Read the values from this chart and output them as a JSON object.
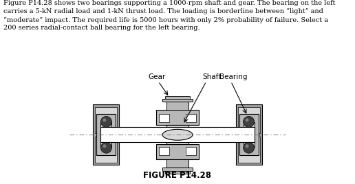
{
  "text_block": "Figure P14.28 shows two bearings supporting a 1000-rpm shaft and gear. The bearing on the left carries a 5-kN radial load and 1-kN thrust load. The loading is borderline between “light” and “moderate” impact. The required life is 5000 hours with only 2% probability of failure. Select a 200 series radial-contact ball bearing for the left bearing.",
  "figure_label": "FIGURE P14.28",
  "label_gear": "Gear",
  "label_shaft": "Shaft",
  "label_bearing": "Bearing",
  "color_dark_gray": "#5a5a5a",
  "color_mid_gray": "#999999",
  "color_light_gray": "#b8b8b8",
  "color_very_light_gray": "#d8d8d8",
  "color_housing_gray": "#a0a0a0",
  "color_white": "#ffffff",
  "color_black": "#000000",
  "color_bg": "#ffffff",
  "color_ball": "#404040"
}
